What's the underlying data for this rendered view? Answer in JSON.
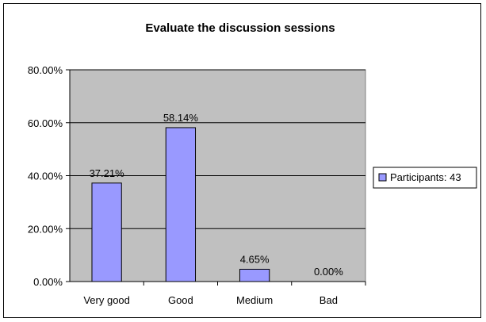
{
  "chart_data": {
    "type": "bar",
    "title": "Evaluate the discussion sessions",
    "categories": [
      "Very good",
      "Good",
      "Medium",
      "Bad"
    ],
    "series": [
      {
        "name": "Participants: 43",
        "values": [
          37.21,
          58.14,
          4.65,
          0.0
        ],
        "labels": [
          "37.21%",
          "58.14%",
          "4.65%",
          "0.00%"
        ],
        "color": "#9999ff"
      }
    ],
    "ylim": [
      0,
      80
    ],
    "y_ticks": [
      0,
      20,
      40,
      60,
      80
    ],
    "y_tick_labels": [
      "0.00%",
      "20.00%",
      "40.00%",
      "60.00%",
      "80.00%"
    ],
    "xlabel": "",
    "ylabel": "",
    "grid": true,
    "plot_background": "#c0c0c0",
    "legend_position": "right"
  }
}
